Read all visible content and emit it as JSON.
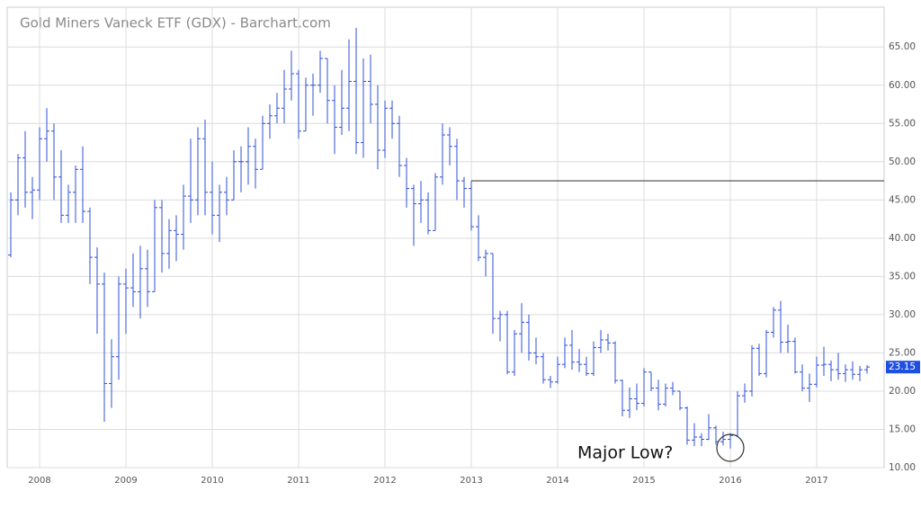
{
  "chart_data": {
    "type": "ohlc",
    "title": "Gold Miners Vaneck ETF (GDX) - Barchart.com",
    "annotation": "Major Low?",
    "hline": 47.5,
    "color": "#2f4fd8",
    "grid": true,
    "categories": [
      null,
      null,
      null,
      null,
      "2008",
      null,
      null,
      null,
      null,
      null,
      null,
      null,
      null,
      null,
      null,
      null,
      "2009",
      null,
      null,
      null,
      null,
      null,
      null,
      null,
      null,
      null,
      null,
      null,
      "2010",
      null,
      null,
      null,
      null,
      null,
      null,
      null,
      null,
      null,
      null,
      null,
      "2011",
      null,
      null,
      null,
      null,
      null,
      null,
      null,
      null,
      null,
      null,
      null,
      "2012",
      null,
      null,
      null,
      null,
      null,
      null,
      null,
      null,
      null,
      null,
      null,
      "2013",
      null,
      null,
      null,
      null,
      null,
      null,
      null,
      null,
      null,
      null,
      null,
      "2014",
      null,
      null,
      null,
      null,
      null,
      null,
      null,
      null,
      null,
      null,
      null,
      "2015",
      null,
      null,
      null,
      null,
      null,
      null,
      null,
      null,
      null,
      null,
      null,
      "2016",
      null,
      null,
      null,
      null,
      null,
      null,
      null,
      null,
      null,
      null,
      null,
      "2017",
      null,
      null,
      null,
      null,
      null,
      null,
      null
    ],
    "open": [
      37.8,
      45,
      50.5,
      46,
      46.3,
      53,
      54,
      48,
      43,
      46,
      49,
      43.5,
      37.5,
      34,
      21,
      24.5,
      34,
      33.5,
      33,
      36,
      33,
      44,
      38,
      41,
      40.5,
      45.5,
      45,
      53,
      46,
      43,
      46,
      45,
      50,
      50,
      52,
      49,
      55,
      56,
      57,
      59.5,
      61.5,
      54,
      60,
      60,
      63.5,
      58,
      54.5,
      57,
      60.5,
      52.5,
      60.5,
      57.5,
      51.5,
      57,
      55,
      49.5,
      46.5,
      44.5,
      45,
      41,
      48,
      53.5,
      52,
      47.5,
      46.5,
      41.5,
      37.5,
      38,
      29.5,
      30,
      22.5,
      27.5,
      29,
      25,
      24.5,
      21.5,
      21.2,
      23.5,
      26,
      23.8,
      23.5,
      22.3,
      25.7,
      26.7,
      26.3,
      21.4,
      17.5,
      19,
      18.4,
      22.5,
      20.4,
      18.3,
      20.4,
      20,
      17.8,
      13.6,
      14,
      13.7,
      15.2,
      13.4,
      13.7,
      14.2,
      19.4,
      20,
      25.6,
      22.3,
      27.7,
      30.6,
      26.4,
      26.5,
      22.5,
      20.4,
      20.9,
      23.4,
      23.5,
      22.8,
      22.3,
      22.8,
      22.2,
      22.8
    ],
    "high": [
      46,
      51,
      54,
      48,
      54.5,
      57,
      55,
      51.5,
      47,
      49.5,
      52,
      44,
      38.8,
      35.5,
      26.8,
      35,
      36,
      38,
      39,
      38.5,
      45,
      45,
      42.5,
      43,
      47,
      53,
      54.5,
      55.5,
      50,
      47,
      48,
      51.5,
      52,
      54.5,
      53,
      56,
      57.5,
      59,
      62,
      64.5,
      62,
      61,
      61.5,
      64.5,
      63.5,
      60,
      62,
      66,
      67.5,
      63.5,
      64,
      60,
      58,
      58,
      56,
      50.5,
      47,
      47.5,
      46,
      48.5,
      55,
      54.5,
      53,
      48,
      47.5,
      43,
      38.5,
      38,
      30.5,
      30.5,
      28,
      31.5,
      30,
      27,
      25,
      22,
      24.5,
      27,
      28,
      25.5,
      24.5,
      26.5,
      28,
      27.5,
      26.5,
      21.5,
      20.5,
      21,
      23,
      22.5,
      21.5,
      21,
      21.2,
      20,
      18,
      15.8,
      14.5,
      17,
      15.5,
      14.7,
      14.5,
      20,
      21,
      26,
      26.2,
      28,
      31,
      31.8,
      28.7,
      27,
      23.5,
      22.3,
      24.5,
      25.8,
      24,
      25,
      23.5,
      23.9,
      23.3,
      23.4
    ],
    "low": [
      37.5,
      43,
      44,
      42.5,
      45,
      50,
      45,
      42,
      42,
      42,
      42,
      34,
      27.5,
      16,
      17.8,
      21.5,
      27.5,
      31,
      29.5,
      31,
      33,
      35.5,
      36,
      37,
      38.5,
      42,
      43,
      43,
      40.5,
      39.5,
      43,
      45,
      46,
      47,
      46.5,
      49,
      53,
      55,
      55,
      58,
      53,
      54,
      56,
      59,
      55,
      51,
      53.5,
      54,
      51,
      50.5,
      55,
      49,
      50.5,
      53,
      48,
      44,
      39,
      42,
      40.5,
      41,
      47,
      49.5,
      45,
      44,
      41,
      37,
      35,
      27.5,
      26.5,
      22.2,
      22,
      25,
      24,
      23.5,
      21,
      20.4,
      21,
      23,
      22.8,
      22.5,
      22,
      22,
      25,
      25.3,
      21,
      16.7,
      16.5,
      17.5,
      18,
      20,
      17.5,
      18,
      19.5,
      17.5,
      13,
      12.8,
      12.8,
      13.6,
      13,
      12.9,
      12.5,
      14,
      18.5,
      19.3,
      22,
      21.8,
      27,
      25,
      25,
      22.3,
      20,
      18.6,
      20.5,
      22,
      21.3,
      21.5,
      21.2,
      21.5,
      21.3,
      22.3
    ],
    "close": [
      45,
      50.5,
      46,
      46.3,
      53,
      54,
      48,
      43,
      46,
      49,
      43.5,
      37.5,
      34,
      21,
      24.5,
      34,
      33.5,
      33,
      36,
      33,
      44,
      38,
      41,
      40.5,
      45.5,
      45,
      53,
      46,
      43,
      46,
      45,
      50,
      50,
      52,
      49,
      55,
      56,
      57,
      59.5,
      61.5,
      54,
      60,
      60,
      63.5,
      58,
      54.5,
      57,
      60.5,
      52.5,
      60.5,
      57.5,
      51.5,
      57,
      55,
      49.5,
      46.5,
      44.5,
      45,
      41,
      48,
      53.5,
      52,
      47.5,
      46.5,
      41.5,
      37.5,
      38,
      29.5,
      30,
      22.5,
      27.5,
      29,
      25,
      24.5,
      21.5,
      21.2,
      23.5,
      26,
      23.8,
      23.5,
      22.3,
      25.7,
      26.7,
      26.3,
      21.4,
      17.5,
      19,
      18.4,
      22.5,
      20.4,
      18.3,
      20.4,
      20,
      17.8,
      13.6,
      14,
      13.7,
      15.2,
      13.4,
      13.7,
      14.2,
      19.4,
      20,
      25.6,
      22.3,
      27.7,
      30.6,
      26.4,
      26.5,
      22.5,
      20.4,
      20.9,
      23.4,
      23.5,
      22.8,
      22.3,
      22.8,
      22.2,
      22.8,
      23.15
    ],
    "ylim": [
      10,
      70.2
    ],
    "yticks": [
      {
        "value": 10,
        "label": "10.00"
      },
      {
        "value": 15,
        "label": "15.00"
      },
      {
        "value": 20,
        "label": "20.00"
      },
      {
        "value": 25,
        "label": "25.00"
      },
      {
        "value": 30,
        "label": "30.00"
      },
      {
        "value": 35,
        "label": "35.00"
      },
      {
        "value": 40,
        "label": "40.00"
      },
      {
        "value": 45,
        "label": "45.00"
      },
      {
        "value": 50,
        "label": "50.00"
      },
      {
        "value": 55,
        "label": "55.00"
      },
      {
        "value": 60,
        "label": "60.00"
      },
      {
        "value": 65,
        "label": "65.00"
      }
    ]
  }
}
